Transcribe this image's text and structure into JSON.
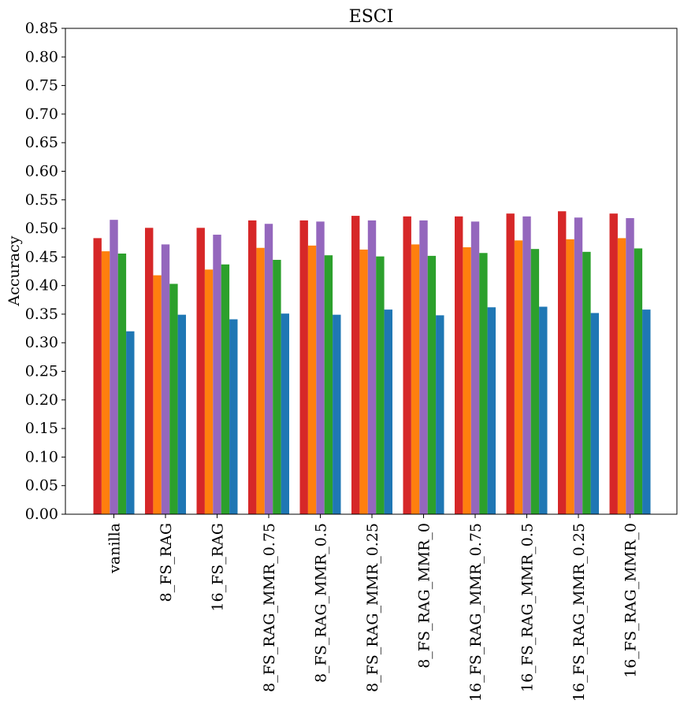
{
  "chart_data": {
    "type": "bar",
    "title": "ESCI",
    "xlabel": "",
    "ylabel": "Accuracy",
    "ylim": [
      0,
      0.85
    ],
    "yticks": [
      "0.00",
      "0.05",
      "0.10",
      "0.15",
      "0.20",
      "0.25",
      "0.30",
      "0.35",
      "0.40",
      "0.45",
      "0.50",
      "0.55",
      "0.60",
      "0.65",
      "0.70",
      "0.75",
      "0.80",
      "0.85"
    ],
    "grid": false,
    "legend": "none",
    "categories": [
      "vanilla",
      "8_FS_RAG",
      "16_FS_RAG",
      "8_FS_RAG_MMR_0.75",
      "8_FS_RAG_MMR_0.5",
      "8_FS_RAG_MMR_0.25",
      "8_FS_RAG_MMR_0",
      "16_FS_RAG_MMR_0.75",
      "16_FS_RAG_MMR_0.5",
      "16_FS_RAG_MMR_0.25",
      "16_FS_RAG_MMR_0"
    ],
    "series": [
      {
        "color": "#d62728",
        "values": [
          0.483,
          0.501,
          0.501,
          0.514,
          0.514,
          0.522,
          0.521,
          0.521,
          0.526,
          0.53,
          0.526
        ]
      },
      {
        "color": "#ff7f0e",
        "values": [
          0.46,
          0.418,
          0.428,
          0.466,
          0.47,
          0.463,
          0.472,
          0.467,
          0.479,
          0.481,
          0.483
        ]
      },
      {
        "color": "#9467bd",
        "values": [
          0.515,
          0.472,
          0.489,
          0.508,
          0.512,
          0.514,
          0.514,
          0.512,
          0.521,
          0.519,
          0.518
        ]
      },
      {
        "color": "#2ca02c",
        "values": [
          0.456,
          0.403,
          0.437,
          0.445,
          0.453,
          0.451,
          0.452,
          0.457,
          0.464,
          0.459,
          0.465
        ]
      },
      {
        "color": "#1f77b4",
        "values": [
          0.32,
          0.349,
          0.341,
          0.351,
          0.349,
          0.358,
          0.348,
          0.362,
          0.363,
          0.352,
          0.358
        ]
      }
    ]
  }
}
